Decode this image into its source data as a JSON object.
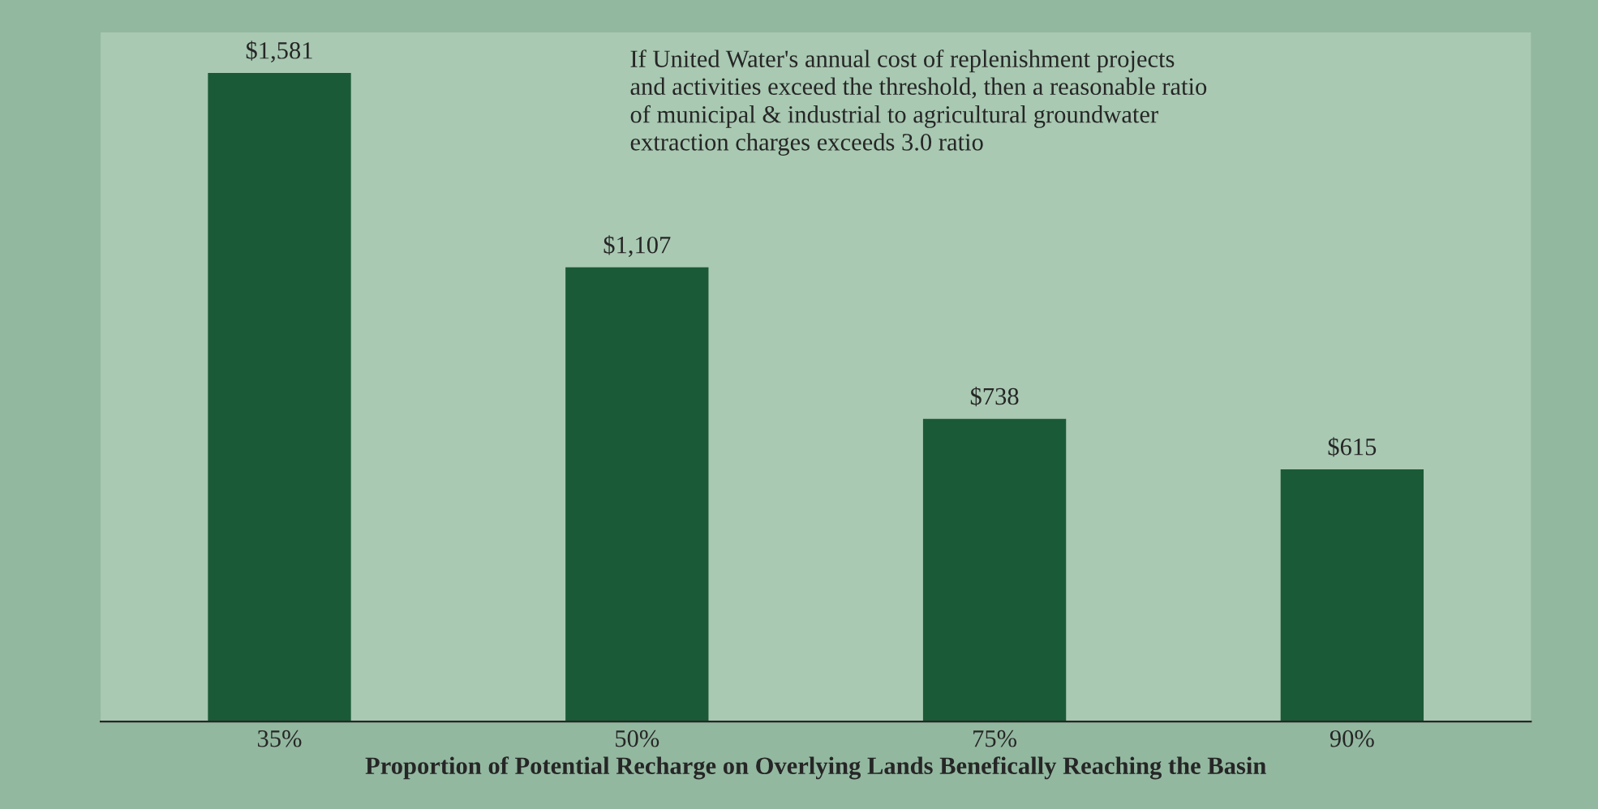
{
  "chart_data": {
    "type": "bar",
    "categories": [
      "35%",
      "50%",
      "75%",
      "90%"
    ],
    "values": [
      1581,
      1107,
      738,
      615
    ],
    "value_labels": [
      "$1,581",
      "$1,107",
      "$738",
      "$615"
    ],
    "color": "#1b5a36",
    "xlabel": "Proportion of Potential Recharge on Overlying Lands Benefically Reaching the Basin",
    "annotations": [
      "If United Water's annual cost of replenishment projects\nand activities exceed the threshold, then a reasonable ratio\nof municipal & industrial to agricultural groundwater\nextraction charges exceeds 3.0 ratio"
    ],
    "grid": false,
    "legend": false
  }
}
